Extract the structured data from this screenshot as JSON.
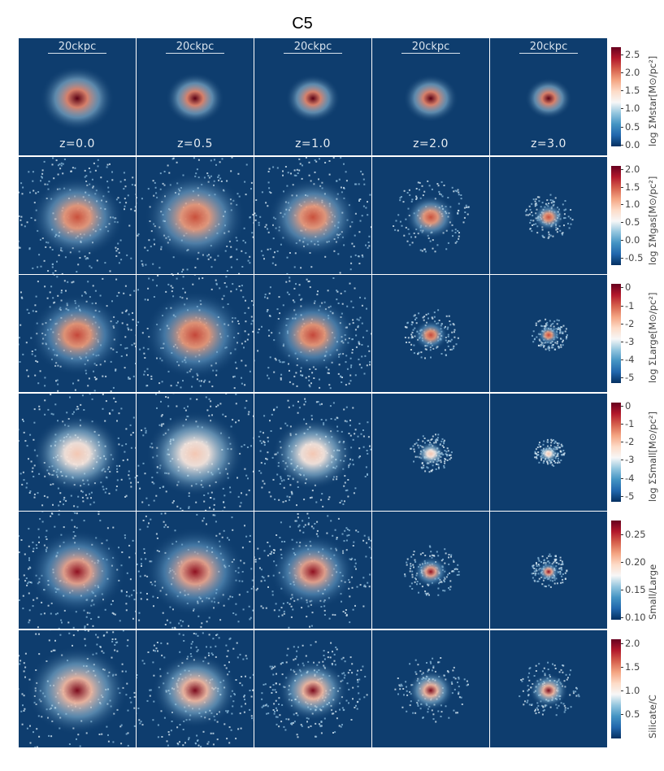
{
  "title": "C5",
  "scalebar_label": "20ckpc",
  "redshift_labels": [
    "z=0.0",
    "z=0.5",
    "z=1.0",
    "z=2.0",
    "z=3.0"
  ],
  "rows": [
    {
      "quantity": "log Σ_Mstar [M⊙/pc²]",
      "label": "log ΣMstar[M⊙/pc²]",
      "ticks": [
        "2.5",
        "2.0",
        "1.5",
        "1.0",
        "0.5",
        "0.0"
      ],
      "range": [
        -0.05,
        2.7
      ]
    },
    {
      "quantity": "log Σ_Mgas [M⊙/pc²]",
      "label": "log ΣMgas[M⊙/pc²]",
      "ticks": [
        "2.0",
        "1.5",
        "1.0",
        "0.5",
        "0.0",
        "-0.5"
      ],
      "range": [
        -0.7,
        2.1
      ]
    },
    {
      "quantity": "log Σ_Large [M⊙/pc²]",
      "label": "log ΣLarge[M⊙/pc²]",
      "ticks": [
        "0",
        "-1",
        "-2",
        "-3",
        "-4",
        "-5"
      ],
      "range": [
        -5.3,
        0.2
      ]
    },
    {
      "quantity": "log Σ_Small [M⊙/pc²]",
      "label": "log ΣSmall[M⊙/pc²]",
      "ticks": [
        "0",
        "-1",
        "-2",
        "-3",
        "-4",
        "-5"
      ],
      "range": [
        -5.3,
        0.2
      ]
    },
    {
      "quantity": "Small/Large",
      "label": "Small/Large",
      "ticks": [
        "0.25",
        "0.20",
        "0.15",
        "0.10"
      ],
      "range": [
        0.095,
        0.275
      ]
    },
    {
      "quantity": "Silicate/C",
      "label": "Silicate/C",
      "ticks": [
        "2.0",
        "1.5",
        "1.0",
        "0.5"
      ],
      "range": [
        0.0,
        2.1
      ]
    }
  ],
  "colormap": [
    "#053061",
    "#2166ac",
    "#4393c3",
    "#92c5de",
    "#f7f7f7",
    "#fddbc7",
    "#f4a582",
    "#d6604d",
    "#b2182b",
    "#67001f"
  ],
  "panel_background": "#0e3d6e"
}
